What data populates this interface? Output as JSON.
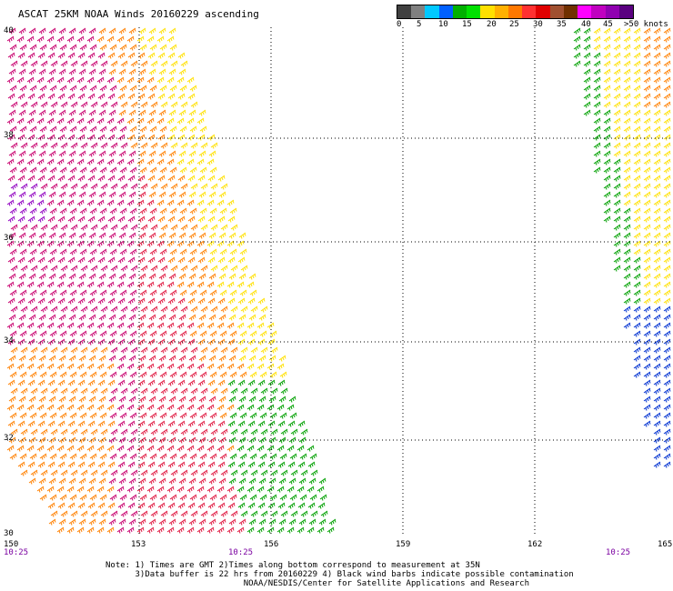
{
  "title": "ASCAT 25KM NOAA Winds 20160229 ascending",
  "legend": {
    "colors": [
      "#404040",
      "#808080",
      "#00c8ff",
      "#0060ff",
      "#00b000",
      "#00e000",
      "#ffe000",
      "#ffb000",
      "#ff7800",
      "#ff3030",
      "#e00000",
      "#a05030",
      "#703000",
      "#ff00ff",
      "#c000c0",
      "#9000b0",
      "#5a0080"
    ],
    "labels": [
      "0",
      "5",
      "10",
      "15",
      "20",
      "25",
      "30",
      "35",
      "40",
      "45",
      ">50 knots"
    ]
  },
  "map": {
    "lat_labels": [
      "40",
      "38",
      "36",
      "34",
      "32",
      "30"
    ],
    "lon_labels": [
      "150",
      "153",
      "156",
      "159",
      "162",
      "165"
    ],
    "times": [
      "10:25",
      "10:25",
      "10:25"
    ]
  },
  "wind_colors": {
    "magenta": "#c8006e",
    "red": "#e01840",
    "orange": "#ff8000",
    "yellow": "#ffe000",
    "green": "#00a000",
    "blue": "#0030d0",
    "purple": "#9000c0"
  },
  "note": {
    "line1": "Note: 1) Times are GMT 2)Times along bottom correspond to measurement at 35N",
    "line2": "      3)Data buffer is 22 hrs from 20160229 4) Black wind barbs indicate possible contamination",
    "line3": "                            NOAA/NESDIS/Center for Satellite Applications and Research"
  }
}
